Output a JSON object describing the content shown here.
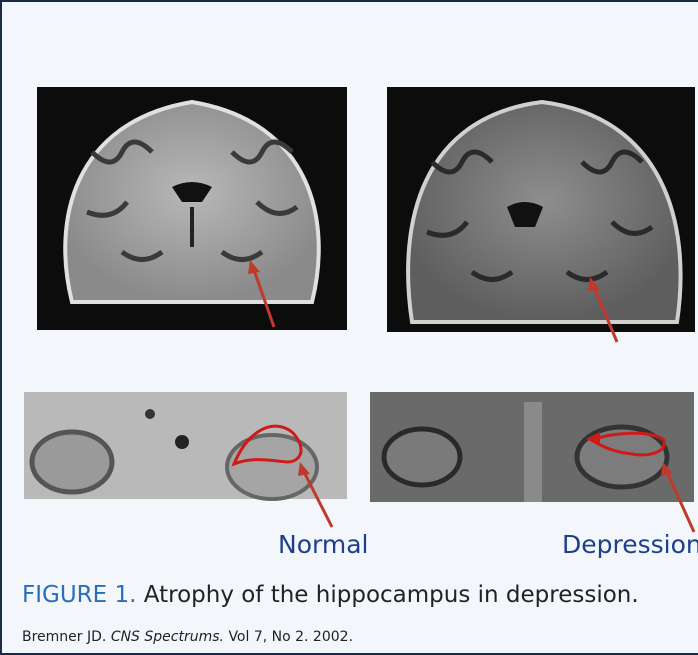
{
  "figure": {
    "panel_labels": [
      "Normal",
      "Depression"
    ],
    "caption": {
      "label": "FIGURE 1.",
      "text": "Atrophy of the hippocampus in depression."
    },
    "citation": {
      "authors": "Bremner JD.",
      "journal": "CNS Spectrums.",
      "details": "Vol 7, No 2. 2002."
    }
  }
}
